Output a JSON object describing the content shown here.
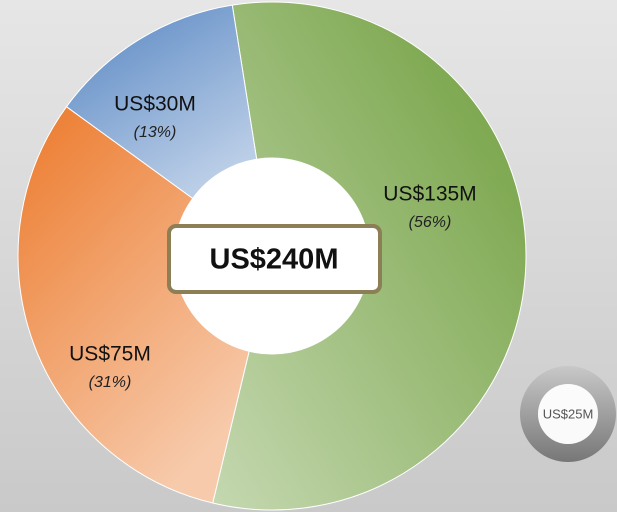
{
  "chart_data": {
    "type": "pie",
    "values": [
      135,
      75,
      30
    ],
    "value_labels": [
      "US$135M",
      "US$75M",
      "US$30M"
    ],
    "shares": [
      56,
      31,
      13
    ],
    "share_labels": [
      "(56%)",
      "(31%)",
      "(13%)"
    ],
    "colors": [
      "#6f9e3c",
      "#ec7a2c",
      "#5585c2"
    ],
    "total": 240,
    "total_label": "US$240M",
    "reference": {
      "value": 25,
      "label": "US$25M"
    }
  }
}
